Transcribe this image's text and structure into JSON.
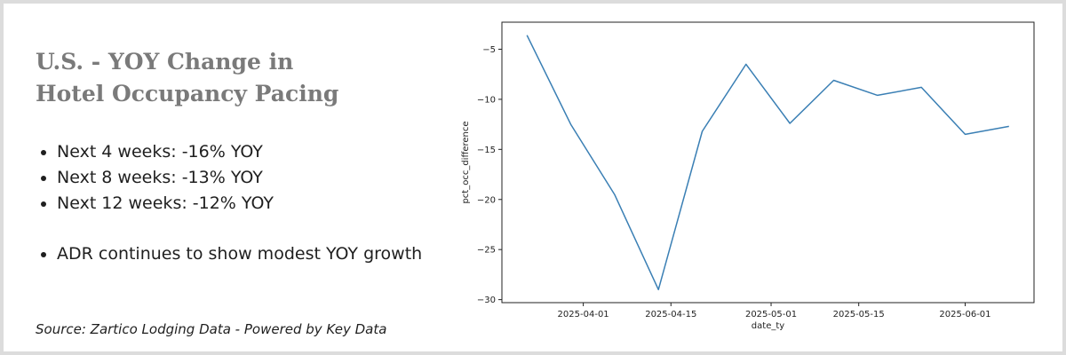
{
  "slide": {
    "title_lines": [
      "U.S. - YOY Change in",
      "Hotel Occupancy Pacing"
    ],
    "bullets": [
      "Next 4 weeks: -16% YOY",
      "Next 8 weeks: -13% YOY",
      "Next 12 weeks: -12% YOY",
      "ADR continues to show modest YOY growth"
    ],
    "source": "Source: Zartico Lodging Data - Powered by Key Data"
  },
  "chart_data": {
    "type": "line",
    "x": [
      "2025-03-23",
      "2025-03-30",
      "2025-04-06",
      "2025-04-13",
      "2025-04-20",
      "2025-04-27",
      "2025-05-04",
      "2025-05-11",
      "2025-05-18",
      "2025-05-25",
      "2025-06-01",
      "2025-06-08"
    ],
    "series": [
      {
        "values": [
          -3.6,
          -12.5,
          -19.5,
          -29.0,
          -13.2,
          -6.5,
          -12.4,
          -8.1,
          -9.6,
          -8.8,
          -13.5,
          -12.7
        ]
      }
    ],
    "xlabel": "date_ty",
    "ylabel": "pct_occ_difference",
    "xticks": [
      "2025-04-01",
      "2025-04-15",
      "2025-05-01",
      "2025-05-15",
      "2025-06-01"
    ],
    "yticks": [
      -5,
      -10,
      -15,
      -20,
      -25,
      -30
    ],
    "xlim": [
      "2025-03-19",
      "2025-06-12"
    ],
    "ylim": [
      -30.3,
      -2.3
    ],
    "grid": false,
    "colors": {
      "line": "#3a7fb4",
      "axes": "#222222"
    }
  }
}
